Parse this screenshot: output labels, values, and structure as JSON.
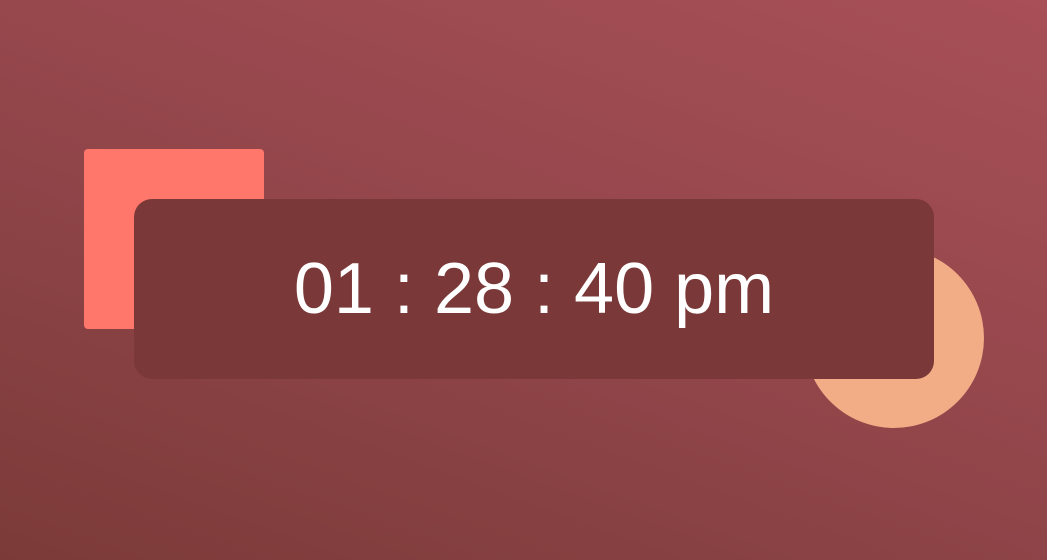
{
  "clock": {
    "time_display": "01 : 28 : 40 pm"
  },
  "colors": {
    "square_accent": "#ff766a",
    "circle_accent": "#f2ac86",
    "card_background": "#7b3838",
    "text": "#ffffff"
  }
}
